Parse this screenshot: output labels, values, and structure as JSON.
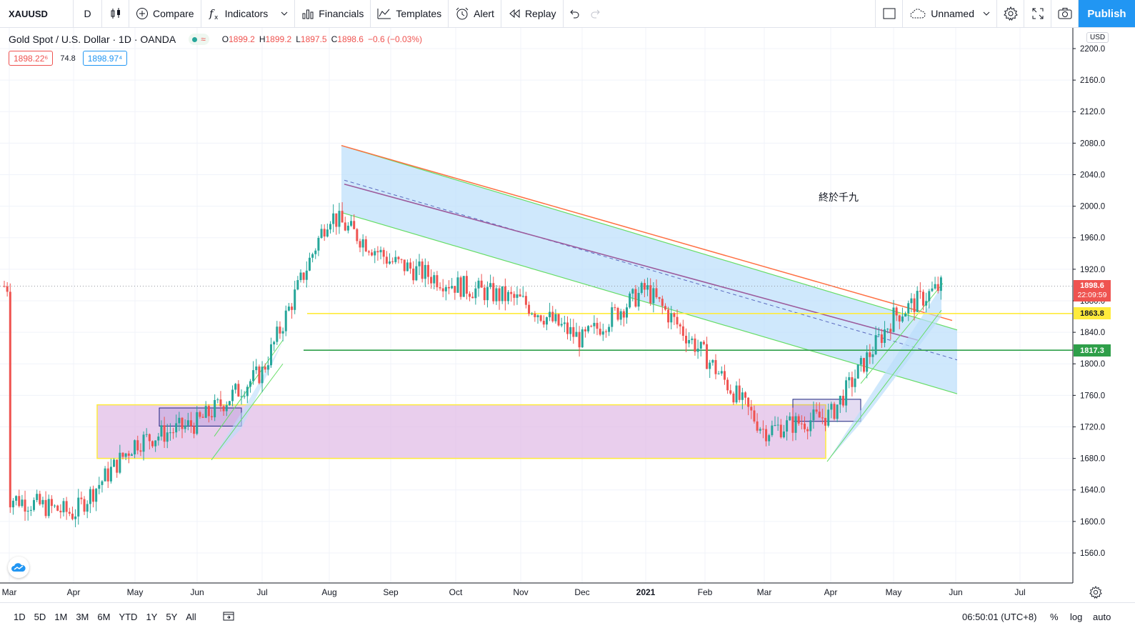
{
  "toolbar": {
    "symbol": "XAUUSD",
    "interval": "D",
    "compare": "Compare",
    "indicators": "Indicators",
    "financials": "Financials",
    "templates": "Templates",
    "alert": "Alert",
    "replay": "Replay",
    "layout_name": "Unnamed",
    "publish": "Publish"
  },
  "legend": {
    "title": "Gold Spot / U.S. Dollar · 1D · OANDA",
    "market_status_glyph": "≈",
    "open_key": "O",
    "open": "1899.2",
    "high_key": "H",
    "high": "1899.2",
    "low_key": "L",
    "low": "1897.5",
    "close_key": "C",
    "close": "1898.6",
    "change": "−0.6 (−0.03%)"
  },
  "quote": {
    "bid": "1898.22⁶",
    "spread": "74.8",
    "ask": "1898.97⁴"
  },
  "annotation": "終於千九",
  "price_axis": {
    "currency": "USD",
    "ticks": [
      "2200.0",
      "2160.0",
      "2120.0",
      "2080.0",
      "2040.0",
      "2000.0",
      "1960.0",
      "1920.0",
      "1880.0",
      "1840.0",
      "1800.0",
      "1760.0",
      "1720.0",
      "1680.0",
      "1640.0",
      "1600.0",
      "1560.0"
    ],
    "last_price": "1898.6",
    "countdown": "22:09:59",
    "yellow_level": "1863.8",
    "green_level": "1817.3"
  },
  "time_axis": {
    "labels": [
      "Mar",
      "Apr",
      "May",
      "Jun",
      "Jul",
      "Aug",
      "Sep",
      "Oct",
      "Nov",
      "Dec",
      "2021",
      "Feb",
      "Mar",
      "Apr",
      "May",
      "Jun",
      "Jul"
    ]
  },
  "colors": {
    "up": "#26a69a",
    "down": "#ef5350",
    "accent": "#2196f3",
    "channel_fill": "#bbdefb",
    "range_fill": "#e1bee7",
    "yellow_line": "#ffeb3b",
    "green_line": "#2e9f49"
  },
  "bottom": {
    "ranges": [
      "1D",
      "5D",
      "1M",
      "3M",
      "6M",
      "YTD",
      "1Y",
      "5Y",
      "All"
    ],
    "clock": "06:50:01 (UTC+8)",
    "percent": "%",
    "log": "log",
    "auto": "auto"
  },
  "chart_data": {
    "type": "candlestick",
    "title": "Gold Spot / U.S. Dollar · 1D · OANDA",
    "ylim": [
      1520,
      2220
    ],
    "grid": true,
    "monthly_path": [
      [
        "Mar",
        1630
      ],
      [
        "Apr",
        1610
      ],
      [
        "May",
        1700
      ],
      [
        "Jun",
        1725
      ],
      [
        "Jul",
        1790
      ],
      [
        "Aug",
        1990
      ],
      [
        "Sep",
        1930
      ],
      [
        "Oct",
        1900
      ],
      [
        "Nov",
        1880
      ],
      [
        "Dec",
        1830
      ],
      [
        "2021",
        1895
      ],
      [
        "Feb",
        1810
      ],
      [
        "Mar",
        1715
      ],
      [
        "Apr",
        1735
      ],
      [
        "May",
        1860
      ],
      [
        "Jun",
        1898.6
      ]
    ],
    "horizontal_levels": [
      1863.8,
      1817.3
    ]
  }
}
